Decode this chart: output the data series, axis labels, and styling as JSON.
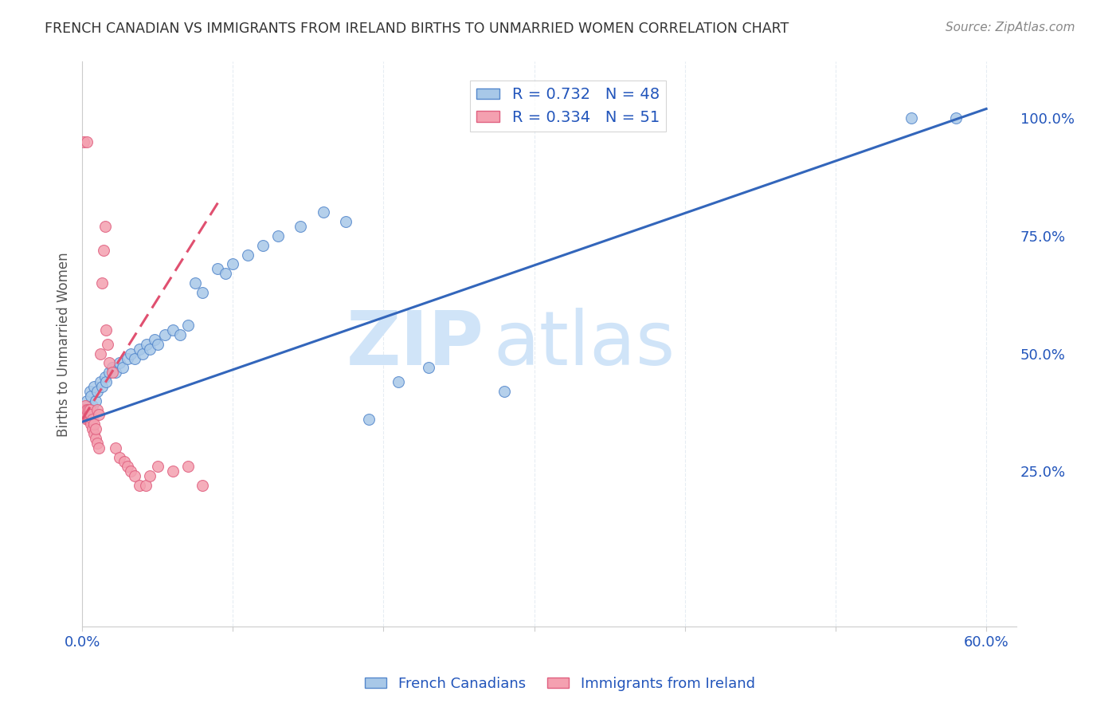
{
  "title": "FRENCH CANADIAN VS IMMIGRANTS FROM IRELAND BIRTHS TO UNMARRIED WOMEN CORRELATION CHART",
  "source": "Source: ZipAtlas.com",
  "ylabel": "Births to Unmarried Women",
  "right_yticks": [
    "25.0%",
    "50.0%",
    "75.0%",
    "100.0%"
  ],
  "right_ytick_vals": [
    0.25,
    0.5,
    0.75,
    1.0
  ],
  "legend_blue_r": "R = 0.732",
  "legend_blue_n": "N = 48",
  "legend_pink_r": "R = 0.334",
  "legend_pink_n": "N = 51",
  "blue_color": "#A8C8E8",
  "pink_color": "#F4A0B0",
  "blue_edge_color": "#5588CC",
  "pink_edge_color": "#E06080",
  "blue_line_color": "#3366BB",
  "pink_line_color": "#E05070",
  "watermark_zip": "ZIP",
  "watermark_atlas": "atlas",
  "watermark_color": "#D0E4F8",
  "background_color": "#FFFFFF",
  "grid_color": "#E0E8F0",
  "axis_label_color": "#2255BB",
  "title_color": "#333333",
  "blue_scatter_x": [
    0.002,
    0.003,
    0.004,
    0.005,
    0.006,
    0.007,
    0.008,
    0.009,
    0.01,
    0.012,
    0.013,
    0.015,
    0.016,
    0.018,
    0.02,
    0.022,
    0.025,
    0.027,
    0.03,
    0.032,
    0.035,
    0.038,
    0.04,
    0.043,
    0.045,
    0.048,
    0.05,
    0.055,
    0.06,
    0.065,
    0.07,
    0.075,
    0.08,
    0.09,
    0.095,
    0.1,
    0.11,
    0.12,
    0.13,
    0.145,
    0.16,
    0.175,
    0.19,
    0.21,
    0.23,
    0.28,
    0.55,
    0.58
  ],
  "blue_scatter_y": [
    0.38,
    0.4,
    0.38,
    0.42,
    0.41,
    0.39,
    0.43,
    0.4,
    0.42,
    0.44,
    0.43,
    0.45,
    0.44,
    0.46,
    0.47,
    0.46,
    0.48,
    0.47,
    0.49,
    0.5,
    0.49,
    0.51,
    0.5,
    0.52,
    0.51,
    0.53,
    0.52,
    0.54,
    0.55,
    0.54,
    0.56,
    0.65,
    0.63,
    0.68,
    0.67,
    0.69,
    0.71,
    0.73,
    0.75,
    0.77,
    0.8,
    0.78,
    0.36,
    0.44,
    0.47,
    0.42,
    1.0,
    1.0
  ],
  "pink_scatter_x": [
    0.001,
    0.001,
    0.001,
    0.001,
    0.001,
    0.002,
    0.002,
    0.002,
    0.002,
    0.003,
    0.003,
    0.003,
    0.003,
    0.004,
    0.004,
    0.005,
    0.005,
    0.005,
    0.006,
    0.006,
    0.007,
    0.007,
    0.008,
    0.008,
    0.009,
    0.009,
    0.01,
    0.01,
    0.011,
    0.011,
    0.012,
    0.013,
    0.014,
    0.015,
    0.016,
    0.017,
    0.018,
    0.02,
    0.022,
    0.025,
    0.028,
    0.03,
    0.032,
    0.035,
    0.038,
    0.042,
    0.045,
    0.05,
    0.06,
    0.07,
    0.08
  ],
  "pink_scatter_y": [
    0.38,
    0.38,
    0.38,
    0.38,
    0.95,
    0.37,
    0.38,
    0.38,
    0.39,
    0.36,
    0.37,
    0.38,
    0.95,
    0.36,
    0.38,
    0.36,
    0.37,
    0.38,
    0.35,
    0.37,
    0.34,
    0.36,
    0.33,
    0.35,
    0.32,
    0.34,
    0.31,
    0.38,
    0.3,
    0.37,
    0.5,
    0.65,
    0.72,
    0.77,
    0.55,
    0.52,
    0.48,
    0.46,
    0.3,
    0.28,
    0.27,
    0.26,
    0.25,
    0.24,
    0.22,
    0.22,
    0.24,
    0.26,
    0.25,
    0.26,
    0.22
  ],
  "blue_line_x": [
    0.0,
    0.6
  ],
  "blue_line_y": [
    0.355,
    1.02
  ],
  "pink_line_x": [
    0.0,
    0.09
  ],
  "pink_line_y": [
    0.36,
    0.82
  ],
  "pink_line_dashed": true,
  "xlim": [
    0.0,
    0.62
  ],
  "ylim": [
    -0.08,
    1.12
  ],
  "xtick_positions": [
    0.0,
    0.1,
    0.2,
    0.3,
    0.4,
    0.5,
    0.6
  ],
  "figsize": [
    14.06,
    8.92
  ],
  "dpi": 100
}
